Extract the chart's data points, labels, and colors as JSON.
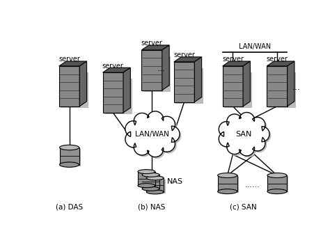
{
  "bg_color": "#ffffff",
  "line_color": "#000000",
  "labels": {
    "das": "(a) DAS",
    "nas": "(b) NAS",
    "san": "(c) SAN",
    "nas_label": "NAS",
    "san_label": "SAN",
    "lanwan_nas": "LAN/WAN",
    "lanwan_san": "LAN/WAN"
  },
  "server_front": "#888888",
  "server_top": "#555555",
  "server_right": "#666666",
  "storage_body": "#909090",
  "storage_top": "#b8b8b8",
  "shadow_color": "#bbbbbb"
}
